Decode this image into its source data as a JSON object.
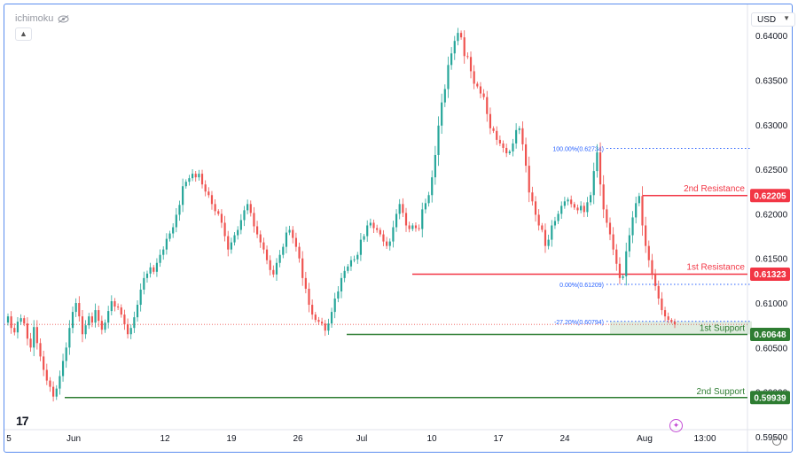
{
  "header": {
    "indicator": "ichimoku",
    "currency": "USD"
  },
  "icons": [
    "eye-off-icon",
    "chevron-up-icon",
    "chevron-down-icon",
    "tradingview-logo-icon",
    "lightning-icon",
    "settings-icon"
  ],
  "colors": {
    "up": "#26a69a",
    "down": "#ef5350",
    "resistance": "#f23645",
    "support": "#2e7d32",
    "fib": "#2962ff"
  },
  "chart_data": {
    "type": "candlestick",
    "y_range": [
      0.5945,
      0.6425
    ],
    "y_ticks": [
      "0.64000",
      "0.63500",
      "0.63000",
      "0.62500",
      "0.62000",
      "0.61500",
      "0.61000",
      "0.60500",
      "0.60000",
      "0.59500"
    ],
    "x_ticks": [
      "5",
      "Jun",
      "12",
      "19",
      "26",
      "Jul",
      "10",
      "17",
      "24",
      "Aug",
      "13:00"
    ],
    "closes": [
      0.6085,
      0.6072,
      0.6067,
      0.6079,
      0.6083,
      0.6077,
      0.606,
      0.605,
      0.6073,
      0.6055,
      0.604,
      0.6025,
      0.6013,
      0.6006,
      0.5995,
      0.6004,
      0.6018,
      0.6035,
      0.605,
      0.6072,
      0.609,
      0.61,
      0.6085,
      0.6065,
      0.6075,
      0.6085,
      0.6078,
      0.6092,
      0.608,
      0.607,
      0.6078,
      0.6091,
      0.6102,
      0.6096,
      0.6095,
      0.6087,
      0.6076,
      0.6065,
      0.6072,
      0.6084,
      0.6098,
      0.6115,
      0.6128,
      0.6133,
      0.614,
      0.6135,
      0.6145,
      0.6154,
      0.616,
      0.6172,
      0.6178,
      0.6185,
      0.6199,
      0.621,
      0.6231,
      0.6236,
      0.624,
      0.6245,
      0.6241,
      0.6245,
      0.6233,
      0.6225,
      0.6221,
      0.6211,
      0.6203,
      0.62,
      0.619,
      0.6175,
      0.616,
      0.6168,
      0.6176,
      0.6182,
      0.6193,
      0.6204,
      0.6211,
      0.6201,
      0.6186,
      0.6177,
      0.6168,
      0.616,
      0.6148,
      0.6137,
      0.6132,
      0.6145,
      0.6154,
      0.6163,
      0.6179,
      0.6182,
      0.6173,
      0.6163,
      0.615,
      0.6128,
      0.6116,
      0.6098,
      0.6087,
      0.6081,
      0.6079,
      0.6077,
      0.6069,
      0.6077,
      0.609,
      0.6105,
      0.6113,
      0.6128,
      0.6136,
      0.6141,
      0.6148,
      0.6149,
      0.6154,
      0.6171,
      0.6175,
      0.6187,
      0.619,
      0.6184,
      0.6182,
      0.6177,
      0.6169,
      0.6164,
      0.6169,
      0.6185,
      0.62,
      0.6211,
      0.6201,
      0.6187,
      0.6183,
      0.6187,
      0.6184,
      0.6183,
      0.6205,
      0.6212,
      0.6221,
      0.6241,
      0.6266,
      0.6299,
      0.6325,
      0.634,
      0.6367,
      0.638,
      0.6394,
      0.6403,
      0.6398,
      0.6377,
      0.6376,
      0.636,
      0.6346,
      0.6343,
      0.6335,
      0.6331,
      0.6312,
      0.6296,
      0.6293,
      0.6283,
      0.6279,
      0.6274,
      0.6268,
      0.627,
      0.6279,
      0.6294,
      0.6296,
      0.6278,
      0.6254,
      0.6224,
      0.6214,
      0.6199,
      0.6187,
      0.6182,
      0.6164,
      0.6171,
      0.6187,
      0.6192,
      0.62,
      0.6209,
      0.6214,
      0.6216,
      0.6211,
      0.6207,
      0.6204,
      0.6209,
      0.6202,
      0.6213,
      0.6221,
      0.6248,
      0.6269,
      0.6233,
      0.6205,
      0.619,
      0.6177,
      0.616,
      0.6144,
      0.6128,
      0.613,
      0.6158,
      0.6176,
      0.6196,
      0.6212,
      0.622,
      0.6187,
      0.6164,
      0.6148,
      0.6133,
      0.6119,
      0.6105,
      0.6092,
      0.6085,
      0.6081,
      0.6079,
      0.6076
    ],
    "annotations": {
      "resistance_2": {
        "label": "2nd Resistance",
        "price": "0.62205"
      },
      "resistance_1": {
        "label": "1st Resistance",
        "price": "0.61323"
      },
      "support_1": {
        "label": "1st Support",
        "price": "0.60648"
      },
      "support_2": {
        "label": "2nd Support",
        "price": "0.59939"
      },
      "fib_100": "100.00%(0.62734)",
      "fib_0": "0.00%(0.61209)",
      "fib_ext": "-27.20%(0.60794)"
    }
  }
}
